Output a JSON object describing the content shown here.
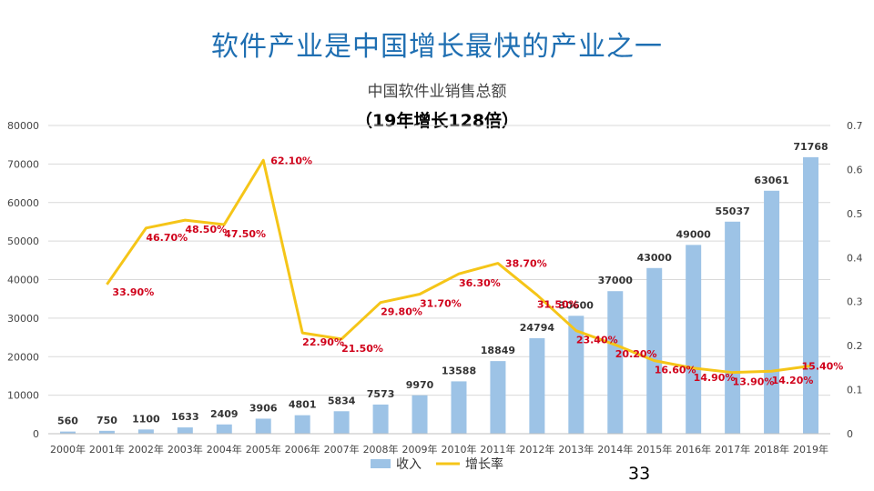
{
  "slide": {
    "title": "软件产业是中国增长最快的产业之一",
    "page_number": "33"
  },
  "colors": {
    "title": "#1f6fb2",
    "bar": "#9dc3e6",
    "line": "#f5c518",
    "rate_label": "#d0021b",
    "grid": "#d9d9d9"
  },
  "chart_data": {
    "type": "bar",
    "title": "中国软件业销售总额",
    "subtitle": "（19年增长128倍）",
    "categories": [
      "2000年",
      "2001年",
      "2002年",
      "2003年",
      "2004年",
      "2005年",
      "2006年",
      "2007年",
      "2008年",
      "2009年",
      "2010年",
      "2011年",
      "2012年",
      "2013年",
      "2014年",
      "2015年",
      "2016年",
      "2017年",
      "2018年",
      "2019年"
    ],
    "series": [
      {
        "name": "收入",
        "type": "bar",
        "axis": "left",
        "values": [
          560,
          750,
          1100,
          1633,
          2409,
          3906,
          4801,
          5834,
          7573,
          9970,
          13588,
          18849,
          24794,
          30600,
          37000,
          43000,
          49000,
          55037,
          63061,
          71768
        ],
        "labels": [
          "560",
          "750",
          "1100",
          "1633",
          "2409",
          "3906",
          "4801",
          "5834",
          "7573",
          "9970",
          "13588",
          "18849",
          "24794",
          "30600",
          "37000",
          "43000",
          "49000",
          "55037",
          "63061",
          "71768"
        ]
      },
      {
        "name": "增长率",
        "type": "line",
        "axis": "right",
        "values": [
          null,
          0.339,
          0.467,
          0.485,
          0.475,
          0.621,
          0.229,
          0.215,
          0.298,
          0.317,
          0.363,
          0.387,
          0.315,
          0.234,
          0.202,
          0.166,
          0.149,
          0.139,
          0.142,
          0.154
        ],
        "labels": [
          "",
          "33.90%",
          "46.70%",
          "48.50%",
          "47.50%",
          "62.10%",
          "22.90%",
          "21.50%",
          "29.80%",
          "31.70%",
          "36.30%",
          "38.70%",
          "31.50%",
          "23.40%",
          "20.20%",
          "16.60%",
          "14.90%",
          "13.90%",
          "14.20%",
          "15.40%"
        ]
      }
    ],
    "y_left": {
      "min": 0,
      "max": 80000,
      "ticks": [
        "0",
        "10000",
        "20000",
        "30000",
        "40000",
        "50000",
        "60000",
        "70000",
        "80000"
      ]
    },
    "y_right": {
      "min": 0,
      "max": 0.7,
      "ticks": [
        "0",
        "0.1",
        "0.2",
        "0.3",
        "0.4",
        "0.5",
        "0.6",
        "0.7"
      ]
    },
    "grid": true,
    "legend": [
      "收入",
      "增长率"
    ],
    "legend_position": "bottom-left"
  }
}
